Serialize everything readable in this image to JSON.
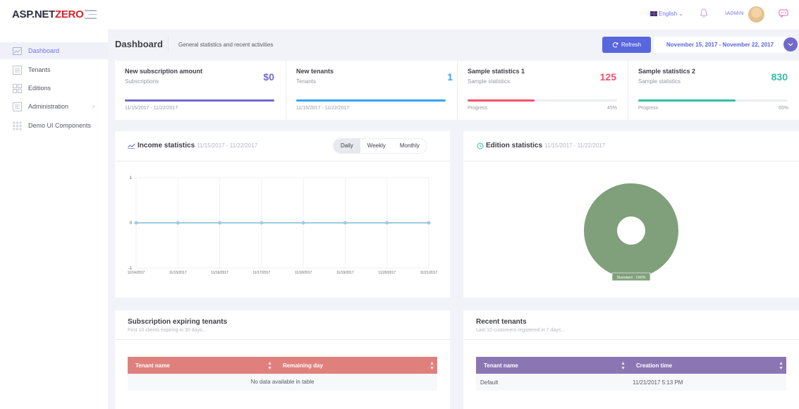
{
  "header": {
    "logo_prefix": "ASP.NET",
    "logo_suffix": "ZERO",
    "language": "English",
    "user": ".\\ADMIN"
  },
  "sidebar": {
    "items": [
      {
        "label": "Dashboard",
        "icon": "chart-line-icon",
        "active": true
      },
      {
        "label": "Tenants",
        "icon": "list-icon"
      },
      {
        "label": "Editions",
        "icon": "grid-icon"
      },
      {
        "label": "Administration",
        "icon": "settings-icon",
        "arrow": ">"
      },
      {
        "label": "Demo UI Components",
        "icon": "dots-grid-icon"
      }
    ]
  },
  "subheader": {
    "title": "Dashboard",
    "description": "General statistics and recent activities",
    "refresh_label": "Refresh",
    "date_range": "November 15, 2017 - November 22, 2017"
  },
  "stats": [
    {
      "title": "New subscription amount",
      "subtitle": "Subscriptions",
      "value": "$0",
      "color": "#716aca",
      "footer": "11/15/2017 - 11/22/2017",
      "fill": 1.0
    },
    {
      "title": "New tenants",
      "subtitle": "Tenants",
      "value": "1",
      "color": "#36a3f7",
      "footer": "11/15/2017 - 11/22/2017",
      "fill": 1.0
    },
    {
      "title": "Sample statistics 1",
      "subtitle": "Sample statistics",
      "value": "125",
      "color": "#f4516c",
      "footer": "Progress",
      "percent": "45%",
      "fill": 0.45
    },
    {
      "title": "Sample statistics 2",
      "subtitle": "Sample statistics",
      "value": "830",
      "color": "#34bfa3",
      "footer": "Progress",
      "percent": "65%",
      "fill": 0.65
    }
  ],
  "income": {
    "title": "Income statistics",
    "range": "11/15/2017 - 11/22/2017",
    "buttons": [
      "Daily",
      "Weekly",
      "Monthly"
    ],
    "selected": "Daily"
  },
  "edition": {
    "title": "Edition statistics",
    "range": "11/15/2017 - 11/22/2017",
    "tooltip": "Standard : 100%"
  },
  "expiring": {
    "title": "Subscription expiring tenants",
    "description": "First 10 clients expiring in 30 days...",
    "columns": [
      "Tenant name",
      "Remaining day"
    ],
    "empty": "No data available in table",
    "header_color": "#e0807d"
  },
  "recent": {
    "title": "Recent tenants",
    "description": "Last 10 customers registered in 7 days...",
    "columns": [
      "Tenant name",
      "Creation time"
    ],
    "rows": [
      [
        "Default",
        "11/21/2017 5:13 PM"
      ]
    ],
    "header_color": "#8b76b4"
  },
  "chart_data": [
    {
      "type": "line",
      "title": "Income statistics",
      "x": [
        "11/14/2017",
        "11/15/2017",
        "11/16/2017",
        "11/17/2017",
        "11/18/2017",
        "11/19/2017",
        "11/20/2017",
        "11/21/2017"
      ],
      "values": [
        0,
        0,
        0,
        0,
        0,
        0,
        0,
        0
      ],
      "yticks": [
        "1",
        "0",
        "-1"
      ],
      "ylim": [
        -1,
        1
      ],
      "color": "#9fcbe0"
    },
    {
      "type": "pie",
      "title": "Edition statistics",
      "labels": [
        "Standard"
      ],
      "values": [
        100
      ],
      "color": "#7fa07a",
      "donut": true
    }
  ]
}
